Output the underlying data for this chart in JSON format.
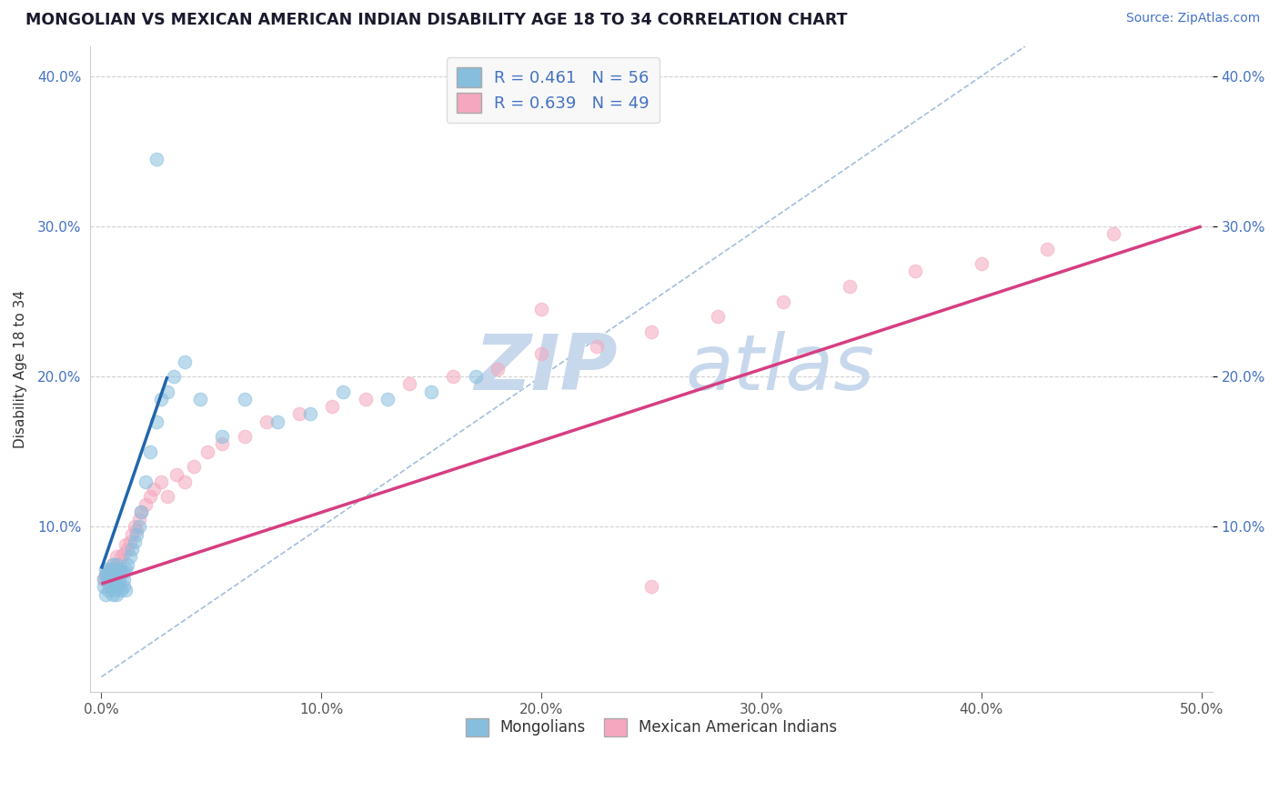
{
  "title": "MONGOLIAN VS MEXICAN AMERICAN INDIAN DISABILITY AGE 18 TO 34 CORRELATION CHART",
  "source": "Source: ZipAtlas.com",
  "ylabel": "Disability Age 18 to 34",
  "xlim": [
    -0.005,
    0.505
  ],
  "ylim": [
    -0.01,
    0.42
  ],
  "xticks": [
    0.0,
    0.1,
    0.2,
    0.3,
    0.4,
    0.5
  ],
  "yticks": [
    0.1,
    0.2,
    0.3,
    0.4
  ],
  "ytick_labels": [
    "10.0%",
    "20.0%",
    "30.0%",
    "40.0%"
  ],
  "xtick_labels": [
    "0.0%",
    "10.0%",
    "20.0%",
    "30.0%",
    "40.0%",
    "50.0%"
  ],
  "mongolian_R": 0.461,
  "mongolian_N": 56,
  "mexican_R": 0.639,
  "mexican_N": 49,
  "blue_color": "#87BEDE",
  "pink_color": "#F4A7BE",
  "blue_line_color": "#2166ac",
  "pink_line_color": "#d63e82",
  "ref_line_color": "#93b3d8",
  "watermark_color": "#c8d8ec",
  "legend_box_color": "#f8f8f8",
  "background_color": "#ffffff",
  "grid_color": "#cccccc",
  "title_color": "#1a1a2e",
  "source_color": "#4472c4",
  "label_color": "#4472c4",
  "mongolian_x": [
    0.001,
    0.001,
    0.002,
    0.002,
    0.002,
    0.003,
    0.003,
    0.003,
    0.004,
    0.004,
    0.004,
    0.005,
    0.005,
    0.005,
    0.005,
    0.006,
    0.006,
    0.006,
    0.007,
    0.007,
    0.007,
    0.007,
    0.008,
    0.008,
    0.008,
    0.009,
    0.009,
    0.01,
    0.01,
    0.01,
    0.011,
    0.011,
    0.012,
    0.013,
    0.014,
    0.015,
    0.016,
    0.017,
    0.018,
    0.02,
    0.022,
    0.025,
    0.027,
    0.03,
    0.033,
    0.038,
    0.045,
    0.055,
    0.065,
    0.08,
    0.095,
    0.11,
    0.13,
    0.15,
    0.17,
    0.025
  ],
  "mongolian_y": [
    0.06,
    0.065,
    0.055,
    0.068,
    0.072,
    0.058,
    0.065,
    0.07,
    0.06,
    0.065,
    0.072,
    0.055,
    0.06,
    0.068,
    0.075,
    0.058,
    0.065,
    0.07,
    0.055,
    0.06,
    0.068,
    0.075,
    0.06,
    0.065,
    0.072,
    0.058,
    0.07,
    0.06,
    0.065,
    0.07,
    0.058,
    0.072,
    0.075,
    0.08,
    0.085,
    0.09,
    0.095,
    0.1,
    0.11,
    0.13,
    0.15,
    0.17,
    0.185,
    0.19,
    0.2,
    0.21,
    0.185,
    0.16,
    0.185,
    0.17,
    0.175,
    0.19,
    0.185,
    0.19,
    0.2,
    0.345
  ],
  "mexican_x": [
    0.001,
    0.002,
    0.003,
    0.004,
    0.005,
    0.005,
    0.006,
    0.007,
    0.008,
    0.009,
    0.01,
    0.011,
    0.012,
    0.013,
    0.014,
    0.015,
    0.016,
    0.017,
    0.018,
    0.02,
    0.022,
    0.024,
    0.027,
    0.03,
    0.034,
    0.038,
    0.042,
    0.048,
    0.055,
    0.065,
    0.075,
    0.09,
    0.105,
    0.12,
    0.14,
    0.16,
    0.18,
    0.2,
    0.225,
    0.25,
    0.28,
    0.31,
    0.34,
    0.37,
    0.4,
    0.43,
    0.46,
    0.2,
    0.25
  ],
  "mexican_y": [
    0.065,
    0.068,
    0.07,
    0.065,
    0.068,
    0.075,
    0.072,
    0.08,
    0.075,
    0.08,
    0.082,
    0.088,
    0.085,
    0.09,
    0.095,
    0.1,
    0.098,
    0.105,
    0.11,
    0.115,
    0.12,
    0.125,
    0.13,
    0.12,
    0.135,
    0.13,
    0.14,
    0.15,
    0.155,
    0.16,
    0.17,
    0.175,
    0.18,
    0.185,
    0.195,
    0.2,
    0.205,
    0.215,
    0.22,
    0.23,
    0.24,
    0.25,
    0.26,
    0.27,
    0.275,
    0.285,
    0.295,
    0.245,
    0.06
  ],
  "blue_line_x": [
    0.0,
    0.03
  ],
  "blue_line_y": [
    0.072,
    0.2
  ],
  "pink_line_x": [
    0.0,
    0.5
  ],
  "pink_line_y": [
    0.062,
    0.3
  ],
  "ref_line_x": [
    0.0,
    0.42
  ],
  "ref_line_y": [
    0.0,
    0.42
  ]
}
